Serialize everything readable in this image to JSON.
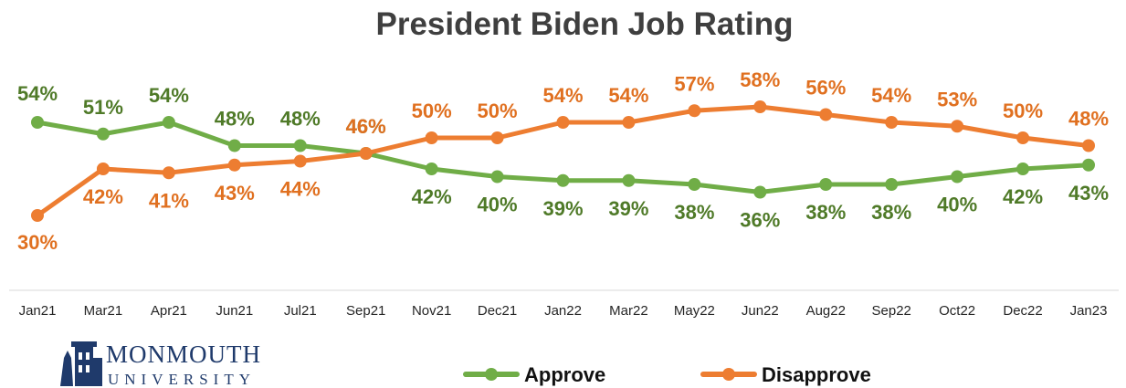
{
  "chart_data": {
    "type": "line",
    "title": "President Biden Job Rating",
    "categories": [
      "Jan21",
      "Mar21",
      "Apr21",
      "Jun21",
      "Jul21",
      "Sep21",
      "Nov21",
      "Dec21",
      "Jan22",
      "Mar22",
      "May22",
      "Jun22",
      "Aug22",
      "Sep22",
      "Oct22",
      "Dec22",
      "Jan23"
    ],
    "series": [
      {
        "name": "Approve",
        "color": "#70ad47",
        "label_color": "#4f7a28",
        "values": [
          54,
          51,
          54,
          48,
          48,
          46,
          42,
          40,
          39,
          39,
          38,
          36,
          38,
          38,
          40,
          42,
          43
        ],
        "labels": [
          "54%",
          "51%",
          "54%",
          "48%",
          "48%",
          "46%",
          "42%",
          "40%",
          "39%",
          "39%",
          "38%",
          "36%",
          "38%",
          "38%",
          "40%",
          "42%",
          "43%"
        ]
      },
      {
        "name": "Disapprove",
        "color": "#ed7d31",
        "label_color": "#e07020",
        "values": [
          30,
          42,
          41,
          43,
          44,
          46,
          50,
          50,
          54,
          54,
          57,
          58,
          56,
          54,
          53,
          50,
          48
        ],
        "labels": [
          "30%",
          "42%",
          "41%",
          "43%",
          "44%",
          "46%",
          "50%",
          "50%",
          "54%",
          "54%",
          "57%",
          "58%",
          "56%",
          "54%",
          "53%",
          "50%",
          "48%"
        ]
      }
    ],
    "xlabel": "",
    "ylabel": "",
    "grid": false,
    "legend_position": "bottom"
  },
  "logo": {
    "line1": "MONMOUTH",
    "line2": "UNIVERSITY"
  }
}
